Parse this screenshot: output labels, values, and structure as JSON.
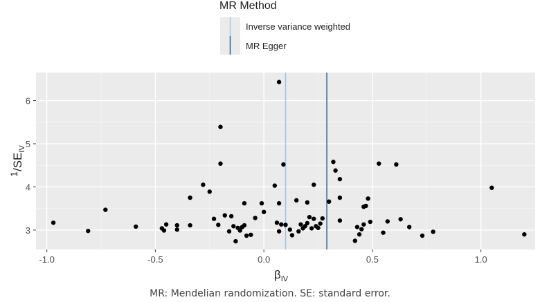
{
  "chart_data": {
    "type": "scatter",
    "xlabel": "βIV",
    "ylabel": "1/SEIV",
    "xlim": [
      -1.05,
      1.25
    ],
    "ylim": [
      2.55,
      6.65
    ],
    "x_ticks": [
      -1.0,
      -0.5,
      0.0,
      0.5,
      1.0
    ],
    "x_tick_labels": [
      "-1.0",
      "-0.5",
      "0.0",
      "0.5",
      "1.0"
    ],
    "y_ticks": [
      3,
      4,
      5,
      6
    ],
    "y_tick_labels": [
      "3",
      "4",
      "5",
      "6"
    ],
    "grid": true,
    "legend": {
      "title": "MR Method",
      "placement": "top",
      "entries": [
        {
          "label": "Inverse variance weighted",
          "color": "#9ec5e3"
        },
        {
          "label": "MR Egger",
          "color": "#2b6a9b"
        }
      ]
    },
    "vlines": [
      {
        "method": "Inverse variance weighted",
        "x": 0.1,
        "color": "#9ec5e3"
      },
      {
        "method": "MR Egger",
        "x": 0.29,
        "color": "#2b6a9b"
      }
    ],
    "points": [
      [
        -0.97,
        3.17
      ],
      [
        -0.81,
        2.98
      ],
      [
        -0.73,
        3.47
      ],
      [
        -0.59,
        3.08
      ],
      [
        -0.47,
        3.04
      ],
      [
        -0.46,
        2.99
      ],
      [
        -0.45,
        3.13
      ],
      [
        -0.4,
        3.11
      ],
      [
        -0.4,
        3.01
      ],
      [
        -0.34,
        3.75
      ],
      [
        -0.34,
        3.11
      ],
      [
        -0.28,
        4.05
      ],
      [
        -0.25,
        3.89
      ],
      [
        -0.23,
        3.26
      ],
      [
        -0.21,
        3.12
      ],
      [
        -0.2,
        5.39
      ],
      [
        -0.2,
        4.54
      ],
      [
        -0.18,
        3.34
      ],
      [
        -0.16,
        2.97
      ],
      [
        -0.15,
        3.32
      ],
      [
        -0.14,
        3.09
      ],
      [
        -0.13,
        2.74
      ],
      [
        -0.12,
        3.05
      ],
      [
        -0.11,
        2.99
      ],
      [
        -0.1,
        3.07
      ],
      [
        -0.09,
        3.11
      ],
      [
        -0.09,
        3.62
      ],
      [
        -0.08,
        2.87
      ],
      [
        -0.06,
        2.89
      ],
      [
        -0.04,
        3.28
      ],
      [
        -0.01,
        3.62
      ],
      [
        0.0,
        3.42
      ],
      [
        0.05,
        4.03
      ],
      [
        0.06,
        3.17
      ],
      [
        0.07,
        6.43
      ],
      [
        0.07,
        3.62
      ],
      [
        0.07,
        2.97
      ],
      [
        0.08,
        3.13
      ],
      [
        0.09,
        4.52
      ],
      [
        0.1,
        3.12
      ],
      [
        0.12,
        3.01
      ],
      [
        0.13,
        2.88
      ],
      [
        0.15,
        3.69
      ],
      [
        0.16,
        2.97
      ],
      [
        0.17,
        3.13
      ],
      [
        0.18,
        3.04
      ],
      [
        0.19,
        3.09
      ],
      [
        0.2,
        3.64
      ],
      [
        0.2,
        3.16
      ],
      [
        0.21,
        3.3
      ],
      [
        0.22,
        3.04
      ],
      [
        0.23,
        3.26
      ],
      [
        0.23,
        4.05
      ],
      [
        0.24,
        3.09
      ],
      [
        0.25,
        3.05
      ],
      [
        0.26,
        3.15
      ],
      [
        0.27,
        3.27
      ],
      [
        0.3,
        3.66
      ],
      [
        0.32,
        4.58
      ],
      [
        0.33,
        4.38
      ],
      [
        0.35,
        4.18
      ],
      [
        0.35,
        3.75
      ],
      [
        0.35,
        3.22
      ],
      [
        0.42,
        2.75
      ],
      [
        0.43,
        3.07
      ],
      [
        0.44,
        2.9
      ],
      [
        0.45,
        3.02
      ],
      [
        0.46,
        3.54
      ],
      [
        0.46,
        3.13
      ],
      [
        0.47,
        3.56
      ],
      [
        0.48,
        3.73
      ],
      [
        0.49,
        3.19
      ],
      [
        0.53,
        4.54
      ],
      [
        0.55,
        2.94
      ],
      [
        0.57,
        3.2
      ],
      [
        0.61,
        4.52
      ],
      [
        0.63,
        3.25
      ],
      [
        0.67,
        3.07
      ],
      [
        0.73,
        2.87
      ],
      [
        0.78,
        2.96
      ],
      [
        1.05,
        3.98
      ],
      [
        1.2,
        2.9
      ]
    ]
  },
  "caption": "MR: Mendelian randomization. SE: standard error."
}
